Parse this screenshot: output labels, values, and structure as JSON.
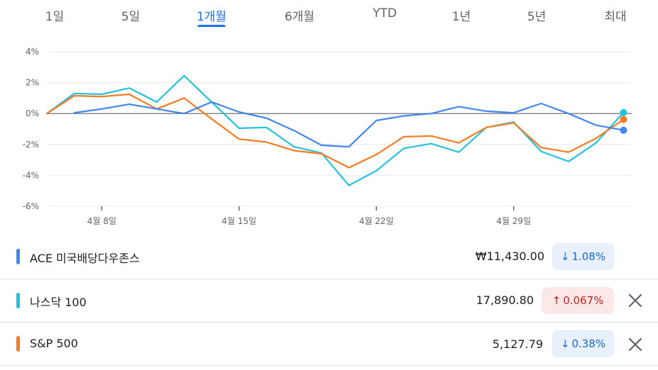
{
  "tabs": [
    {
      "label": "1일",
      "active": false
    },
    {
      "label": "5일",
      "active": false
    },
    {
      "label": "1개월",
      "active": true
    },
    {
      "label": "6개월",
      "active": false
    },
    {
      "label": "YTD",
      "active": false
    },
    {
      "label": "1년",
      "active": false
    },
    {
      "label": "5년",
      "active": false
    },
    {
      "label": "최대",
      "active": false
    }
  ],
  "chart_data": {
    "type": "line",
    "y_tick_labels": [
      "4%",
      "2%",
      "0%",
      "-2%",
      "-4%",
      "-6%"
    ],
    "y_ticks": [
      4,
      2,
      0,
      -2,
      -4,
      -6
    ],
    "ylim": [
      -6,
      4
    ],
    "x_tick_labels": [
      "4월 8일",
      "4월 15일",
      "4월 22일",
      "4월 29일"
    ],
    "x_ticks": [
      2.0,
      7.0,
      12.0,
      17.0
    ],
    "xlim": [
      0,
      21.3
    ],
    "grid": true,
    "zero_line": true,
    "series": [
      {
        "name": "ACE 미국배당다우존스",
        "color": "#4285f4",
        "x": [
          1,
          2,
          3,
          4,
          5,
          6,
          7,
          8,
          9,
          10,
          11,
          12,
          13,
          14,
          15,
          16,
          17,
          18,
          19,
          20,
          21
        ],
        "values": [
          0.05,
          0.3,
          0.6,
          0.3,
          0.0,
          0.75,
          0.1,
          -0.3,
          -1.1,
          -2.05,
          -2.15,
          -0.45,
          -0.15,
          0.0,
          0.45,
          0.15,
          0.05,
          0.65,
          0.0,
          -0.75,
          -1.08
        ]
      },
      {
        "name": "나스닥 100",
        "color": "#24c1e0",
        "x": [
          0,
          1,
          2,
          3,
          4,
          5,
          6,
          7,
          8,
          9,
          10,
          11,
          12,
          13,
          14,
          15,
          16,
          17,
          18,
          19,
          20,
          21
        ],
        "values": [
          0.0,
          1.3,
          1.25,
          1.65,
          0.75,
          2.45,
          0.75,
          -0.95,
          -0.9,
          -2.15,
          -2.55,
          -4.65,
          -3.7,
          -2.25,
          -1.95,
          -2.5,
          -0.9,
          -0.55,
          -2.45,
          -3.1,
          -1.9,
          0.067
        ]
      },
      {
        "name": "S&P 500",
        "color": "#f77b21",
        "x": [
          0,
          1,
          2,
          3,
          4,
          5,
          6,
          7,
          8,
          9,
          10,
          11,
          12,
          13,
          14,
          15,
          16,
          17,
          18,
          19,
          20,
          21
        ],
        "values": [
          0.0,
          1.15,
          1.1,
          1.25,
          0.3,
          1.0,
          -0.35,
          -1.65,
          -1.85,
          -2.4,
          -2.6,
          -3.5,
          -2.65,
          -1.5,
          -1.45,
          -1.9,
          -0.9,
          -0.6,
          -2.2,
          -2.5,
          -1.6,
          -0.38
        ]
      }
    ]
  },
  "legend": [
    {
      "name": "ACE 미국배당다우존스",
      "color": "#4285f4",
      "price": "₩11,430.00",
      "change": "1.08%",
      "direction": "down",
      "removable": false
    },
    {
      "name": "나스닥 100",
      "color": "#24c1e0",
      "price": "17,890.80",
      "change": "0.067%",
      "direction": "up",
      "removable": true
    },
    {
      "name": "S&P 500",
      "color": "#f77b21",
      "price": "5,127.79",
      "change": "0.38%",
      "direction": "down",
      "removable": true
    }
  ]
}
